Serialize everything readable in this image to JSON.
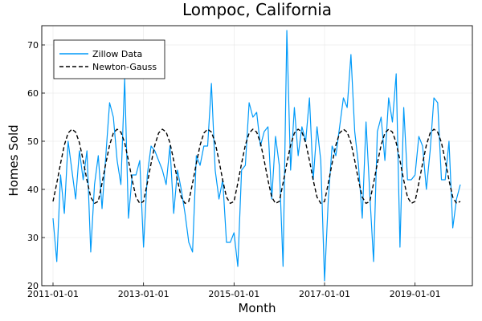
{
  "chart_data": {
    "type": "line",
    "title": "Lompoc, California",
    "xlabel": "Month",
    "ylabel": "Homes Sold",
    "x_start": "2011-01-01",
    "x_frequency": "monthly",
    "xticks": [
      "2011-01-01",
      "2013-01-01",
      "2015-01-01",
      "2017-01-01",
      "2019-01-01"
    ],
    "yticks": [
      20,
      30,
      40,
      50,
      60,
      70
    ],
    "ylim": [
      20,
      74
    ],
    "grid": true,
    "legend_position": "top-left",
    "series": [
      {
        "name": "Zillow Data",
        "color": "#009af9",
        "style": "solid",
        "values": [
          34,
          25,
          43,
          35,
          50,
          44,
          38,
          48,
          42,
          48,
          27,
          41,
          47,
          36,
          47,
          58,
          55,
          46,
          41,
          63,
          34,
          43,
          43,
          46,
          28,
          43,
          49,
          48,
          46,
          44,
          41,
          49,
          35,
          44,
          40,
          35,
          29,
          27,
          47,
          45,
          49,
          49,
          62,
          44,
          38,
          42,
          29,
          29,
          31,
          24,
          44,
          45,
          58,
          55,
          56,
          49,
          52,
          53,
          38,
          51,
          45,
          24,
          73,
          44,
          57,
          47,
          53,
          50,
          59,
          42,
          53,
          46,
          21,
          38,
          49,
          47,
          53,
          59,
          57,
          68,
          52,
          45,
          34,
          54,
          39,
          25,
          52,
          55,
          46,
          59,
          54,
          64,
          28,
          57,
          42,
          42,
          43,
          51,
          49,
          40,
          48,
          59,
          58,
          42,
          42,
          50,
          32,
          38,
          41
        ]
      },
      {
        "name": "Newton-Gauss",
        "color": "#000000",
        "style": "dashed",
        "values": [
          37.5,
          41.3,
          45.4,
          49.2,
          51.7,
          52.5,
          51.9,
          49.7,
          46.0,
          41.9,
          38.4,
          37.1,
          37.5,
          41.3,
          45.4,
          49.2,
          51.7,
          52.5,
          51.9,
          49.7,
          46.0,
          41.9,
          38.4,
          37.1,
          37.5,
          41.3,
          45.4,
          49.2,
          51.7,
          52.5,
          51.9,
          49.7,
          46.0,
          41.9,
          38.4,
          37.1,
          37.5,
          41.3,
          45.4,
          49.2,
          51.7,
          52.5,
          51.9,
          49.7,
          46.0,
          41.9,
          38.4,
          37.1,
          37.5,
          41.3,
          45.4,
          49.2,
          51.7,
          52.5,
          51.9,
          49.7,
          46.0,
          41.9,
          38.4,
          37.1,
          37.5,
          41.3,
          45.4,
          49.2,
          51.7,
          52.5,
          51.9,
          49.7,
          46.0,
          41.9,
          38.4,
          37.1,
          37.5,
          41.3,
          45.4,
          49.2,
          51.7,
          52.5,
          51.9,
          49.7,
          46.0,
          41.9,
          38.4,
          37.1,
          37.5,
          41.3,
          45.4,
          49.2,
          51.7,
          52.5,
          51.9,
          49.7,
          46.0,
          41.9,
          38.4,
          37.1,
          37.5,
          41.3,
          45.4,
          49.2,
          51.7,
          52.5,
          51.9,
          49.7,
          46.0,
          41.9,
          38.4,
          37.1,
          37.5
        ]
      }
    ]
  }
}
